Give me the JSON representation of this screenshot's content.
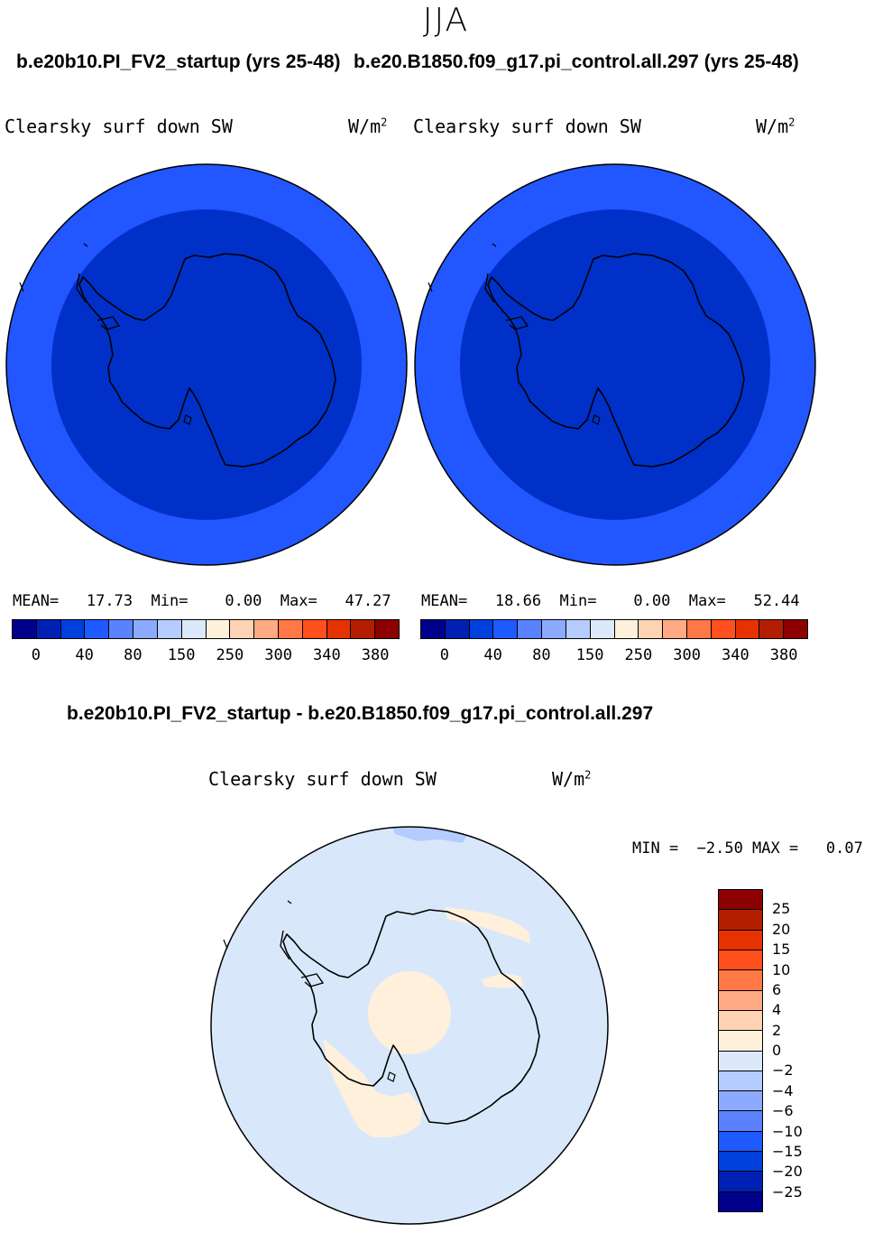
{
  "season": "JJA",
  "left_panel": {
    "title": "b.e20b10.PI_FV2_startup (yrs 25-48)",
    "var_name": "Clearsky surf down SW",
    "units": "W/m",
    "units_sup": "2",
    "stats": "MEAN=   17.73  Min=    0.00  Max=   47.27"
  },
  "right_panel": {
    "title": "b.e20.B1850.f09_g17.pi_control.all.297 (yrs 25-48)",
    "var_name": "Clearsky surf down SW",
    "units": "W/m",
    "units_sup": "2",
    "stats": "MEAN=   18.66  Min=    0.00  Max=   52.44"
  },
  "abs_colorbar": {
    "colors": [
      "#00008c",
      "#0020b4",
      "#0040dc",
      "#1e5aff",
      "#5a82ff",
      "#8caaff",
      "#b4ccff",
      "#dce9fa",
      "#fff0dc",
      "#ffd2b4",
      "#ffaa82",
      "#ff7846",
      "#ff501e",
      "#e63200",
      "#b41e00",
      "#8c0000"
    ],
    "ticks": [
      "0",
      "40",
      "80",
      "150",
      "250",
      "300",
      "340",
      "380"
    ]
  },
  "diff_panel": {
    "title": "b.e20b10.PI_FV2_startup - b.e20.B1850.f09_g17.pi_control.all.297",
    "var_name": "Clearsky surf down SW",
    "units": "W/m",
    "units_sup": "2",
    "minmax": "MIN =  −2.50 MAX =   0.07"
  },
  "diff_colorbar": {
    "colors": [
      "#8c0000",
      "#b41e00",
      "#e63200",
      "#ff501e",
      "#ff7846",
      "#ffaa82",
      "#ffd2b4",
      "#fff0dc",
      "#dce9fa",
      "#b4ccff",
      "#8caaff",
      "#5a82ff",
      "#1e5aff",
      "#0040dc",
      "#0020b4",
      "#00008c"
    ],
    "ticks": [
      "25",
      "20",
      "15",
      "10",
      "6",
      "4",
      "2",
      "0",
      "−2",
      "−4",
      "−6",
      "−10",
      "−15",
      "−20",
      "−25"
    ]
  },
  "map_colors": {
    "outer_ring": "#2256ff",
    "inner_disc": "#0030c8",
    "diff_background": "#d8e8fa",
    "diff_negative": "#b4ccff",
    "diff_positive": "#fff0dc"
  }
}
